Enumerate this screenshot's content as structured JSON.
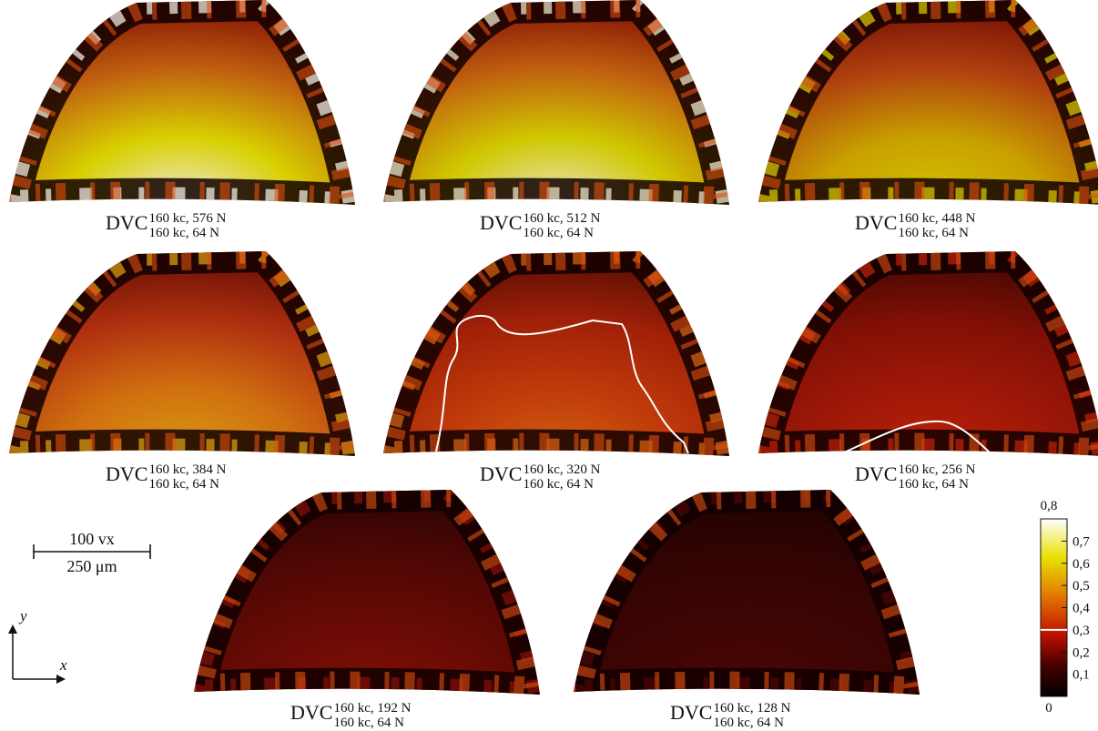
{
  "panels": [
    {
      "caption": {
        "main": "DVC",
        "sup": "160 kc, 576 N",
        "sub": "160 kc, 64 N"
      }
    },
    {
      "caption": {
        "main": "DVC",
        "sup": "160 kc, 512 N",
        "sub": "160 kc, 64 N"
      }
    },
    {
      "caption": {
        "main": "DVC",
        "sup": "160 kc, 448 N",
        "sub": "160 kc, 64 N"
      }
    },
    {
      "caption": {
        "main": "DVC",
        "sup": "160 kc, 384 N",
        "sub": "160 kc, 64 N"
      }
    },
    {
      "caption": {
        "main": "DVC",
        "sup": "160 kc, 320 N",
        "sub": "160 kc, 64 N"
      }
    },
    {
      "caption": {
        "main": "DVC",
        "sup": "160 kc, 256 N",
        "sub": "160 kc, 64 N"
      }
    },
    {
      "caption": {
        "main": "DVC",
        "sup": "160 kc, 192 N",
        "sub": "160 kc, 64 N"
      }
    },
    {
      "caption": {
        "main": "DVC",
        "sup": "160 kc, 128 N",
        "sub": "160 kc, 64 N"
      }
    }
  ],
  "scale_bar": {
    "top": "100 vx",
    "bottom": "250 μm"
  },
  "axes": {
    "x": "x",
    "y": "y"
  },
  "colorbar": {
    "lim": [
      0,
      0.8
    ],
    "ticks": [
      0,
      {
        "value": 0.1,
        "label": "0,1"
      },
      {
        "value": 0.2,
        "label": "0,2"
      },
      {
        "value": 0.3,
        "label": "0,3"
      },
      {
        "value": 0.4,
        "label": "0,4"
      },
      {
        "value": 0.5,
        "label": "0,5"
      },
      {
        "value": 0.6,
        "label": "0,6"
      },
      {
        "value": 0.7,
        "label": "0,7"
      },
      {
        "value": 0.8,
        "label": "0,8"
      }
    ],
    "threshold": 0.3
  }
}
